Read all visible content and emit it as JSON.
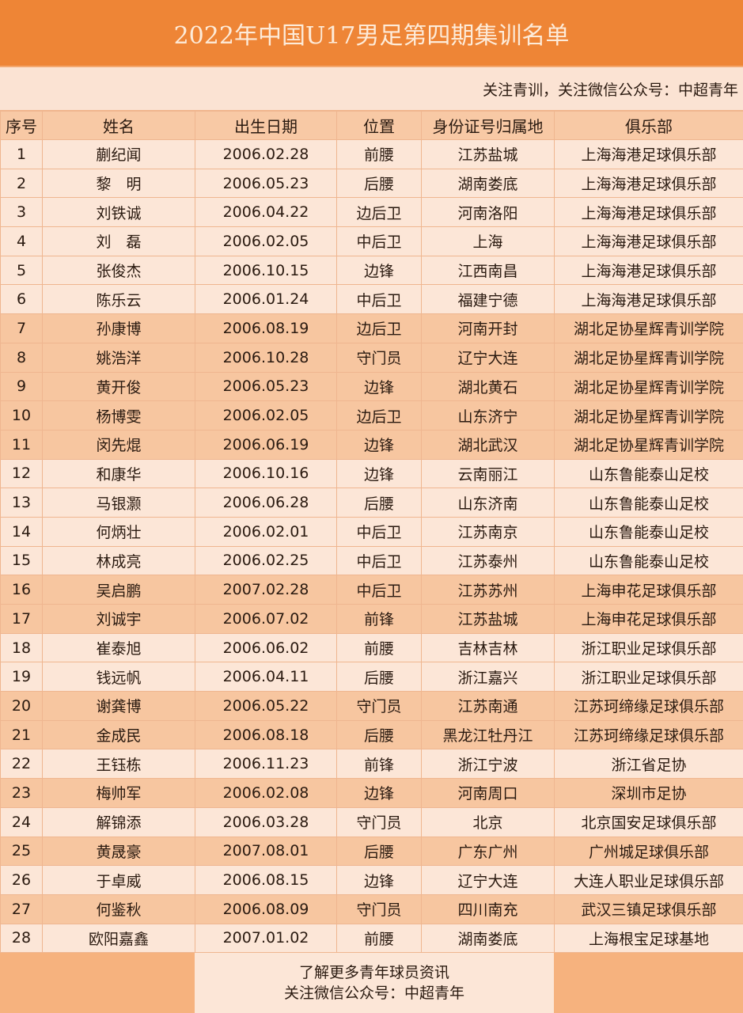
{
  "title": "2022年中国U17男足第四期集训名单",
  "subtitle": "关注青训，关注微信公众号：中超青年",
  "colors": {
    "title_bar": "#ee8536",
    "header": "#f8c9a5",
    "row_light": "#fce6d7",
    "row_dark": "#f7c6a0"
  },
  "columns": [
    "序号",
    "姓名",
    "出生日期",
    "位置",
    "身份证号归属地",
    "俱乐部"
  ],
  "rows": [
    [
      "1",
      "蒯纪闻",
      "2006.02.28",
      "前腰",
      "江苏盐城",
      "上海海港足球俱乐部",
      "light"
    ],
    [
      "2",
      "黎　明",
      "2006.05.23",
      "后腰",
      "湖南娄底",
      "上海海港足球俱乐部",
      "light"
    ],
    [
      "3",
      "刘铁诚",
      "2006.04.22",
      "边后卫",
      "河南洛阳",
      "上海海港足球俱乐部",
      "light"
    ],
    [
      "4",
      "刘　磊",
      "2006.02.05",
      "中后卫",
      "上海",
      "上海海港足球俱乐部",
      "light"
    ],
    [
      "5",
      "张俊杰",
      "2006.10.15",
      "边锋",
      "江西南昌",
      "上海海港足球俱乐部",
      "light"
    ],
    [
      "6",
      "陈乐云",
      "2006.01.24",
      "中后卫",
      "福建宁德",
      "上海海港足球俱乐部",
      "light"
    ],
    [
      "7",
      "孙康博",
      "2006.08.19",
      "边后卫",
      "河南开封",
      "湖北足协星辉青训学院",
      "dark"
    ],
    [
      "8",
      "姚浩洋",
      "2006.10.28",
      "守门员",
      "辽宁大连",
      "湖北足协星辉青训学院",
      "dark"
    ],
    [
      "9",
      "黄开俊",
      "2006.05.23",
      "边锋",
      "湖北黄石",
      "湖北足协星辉青训学院",
      "dark"
    ],
    [
      "10",
      "杨博雯",
      "2006.02.05",
      "边后卫",
      "山东济宁",
      "湖北足协星辉青训学院",
      "dark"
    ],
    [
      "11",
      "闵先焜",
      "2006.06.19",
      "边锋",
      "湖北武汉",
      "湖北足协星辉青训学院",
      "dark"
    ],
    [
      "12",
      "和康华",
      "2006.10.16",
      "边锋",
      "云南丽江",
      "山东鲁能泰山足校",
      "light"
    ],
    [
      "13",
      "马银灏",
      "2006.06.28",
      "后腰",
      "山东济南",
      "山东鲁能泰山足校",
      "light"
    ],
    [
      "14",
      "何炳壮",
      "2006.02.01",
      "中后卫",
      "江苏南京",
      "山东鲁能泰山足校",
      "light"
    ],
    [
      "15",
      "林成亮",
      "2006.02.25",
      "中后卫",
      "江苏泰州",
      "山东鲁能泰山足校",
      "light"
    ],
    [
      "16",
      "吴启鹏",
      "2007.02.28",
      "中后卫",
      "江苏苏州",
      "上海申花足球俱乐部",
      "dark"
    ],
    [
      "17",
      "刘诚宇",
      "2006.07.02",
      "前锋",
      "江苏盐城",
      "上海申花足球俱乐部",
      "dark"
    ],
    [
      "18",
      "崔泰旭",
      "2006.06.02",
      "前腰",
      "吉林吉林",
      "浙江职业足球俱乐部",
      "light"
    ],
    [
      "19",
      "钱远帆",
      "2006.04.11",
      "后腰",
      "浙江嘉兴",
      "浙江职业足球俱乐部",
      "light"
    ],
    [
      "20",
      "谢龚博",
      "2006.05.22",
      "守门员",
      "江苏南通",
      "江苏珂缔缘足球俱乐部",
      "dark"
    ],
    [
      "21",
      "金成民",
      "2006.08.18",
      "后腰",
      "黑龙江牡丹江",
      "江苏珂缔缘足球俱乐部",
      "dark"
    ],
    [
      "22",
      "王钰栋",
      "2006.11.23",
      "前锋",
      "浙江宁波",
      "浙江省足协",
      "light"
    ],
    [
      "23",
      "梅帅军",
      "2006.02.08",
      "边锋",
      "河南周口",
      "深圳市足协",
      "dark"
    ],
    [
      "24",
      "解锦添",
      "2006.03.28",
      "守门员",
      "北京",
      "北京国安足球俱乐部",
      "light"
    ],
    [
      "25",
      "黄晟豪",
      "2007.08.01",
      "后腰",
      "广东广州",
      "广州城足球俱乐部",
      "dark"
    ],
    [
      "26",
      "于卓威",
      "2006.08.15",
      "边锋",
      "辽宁大连",
      "大连人职业足球俱乐部",
      "light"
    ],
    [
      "27",
      "何鉴秋",
      "2006.08.09",
      "守门员",
      "四川南充",
      "武汉三镇足球俱乐部",
      "dark"
    ],
    [
      "28",
      "欧阳嘉鑫",
      "2007.01.02",
      "前腰",
      "湖南娄底",
      "上海根宝足球基地",
      "light"
    ]
  ],
  "footer": {
    "line1": "了解更多青年球员资讯",
    "line2": "关注微信公众号：中超青年"
  }
}
